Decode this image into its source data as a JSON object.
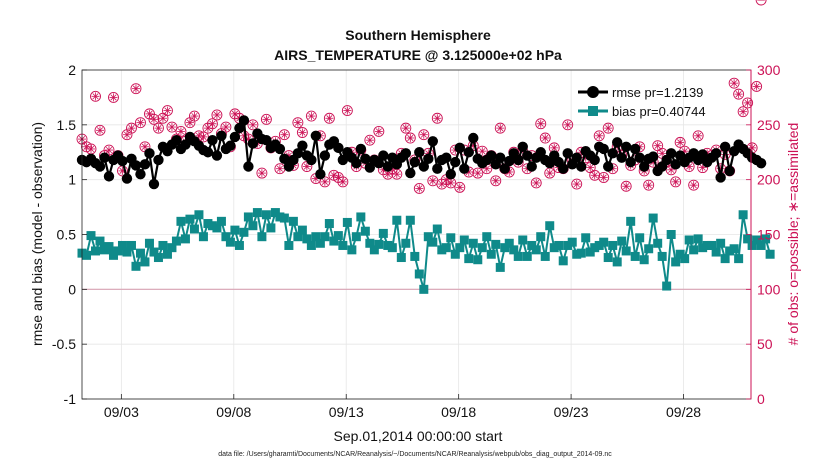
{
  "chart_data": {
    "type": "line",
    "title": "Southern Hemisphere",
    "subtitle": "AIRS_TEMPERATURE @ 3.125000e+02 hPa",
    "xlabel": "Sep.01,2014 00:00:00 start",
    "ylabel": "rmse and bias (model - observation)",
    "y2label": "# of obs: o=possible; ∗=assimilated",
    "xticks": [
      {
        "day": 3,
        "label": "09/03"
      },
      {
        "day": 8,
        "label": "09/08"
      },
      {
        "day": 13,
        "label": "09/13"
      },
      {
        "day": 18,
        "label": "09/18"
      },
      {
        "day": 23,
        "label": "09/23"
      },
      {
        "day": 28,
        "label": "09/28"
      }
    ],
    "xlim": [
      1.25,
      31.0
    ],
    "ylim": [
      -1,
      2
    ],
    "yticks": [
      "-1",
      "-0.5",
      "0",
      "0.5",
      "1",
      "1.5",
      "2"
    ],
    "y2lim": [
      0,
      300
    ],
    "y2ticks": [
      "0",
      "50",
      "100",
      "150",
      "200",
      "250",
      "300"
    ],
    "grid": true,
    "legend_position": "top-right",
    "colors": {
      "rmse": "#000000",
      "bias": "#0f8a8a",
      "obs": "#cc1155",
      "zero_line": "#d9a3b4"
    },
    "series": [
      {
        "name": "rmse pr=1.2139",
        "axis": "left",
        "values": [
          1.18,
          1.16,
          1.19,
          1.15,
          1.12,
          1.2,
          1.03,
          1.18,
          1.22,
          1.17,
          1.01,
          1.19,
          1.13,
          1.05,
          1.14,
          1.24,
          0.96,
          1.18,
          1.3,
          1.26,
          1.32,
          1.36,
          1.28,
          1.32,
          1.39,
          1.35,
          1.31,
          1.27,
          1.25,
          1.36,
          1.22,
          1.4,
          1.28,
          1.31,
          1.39,
          1.47,
          1.54,
          1.12,
          1.33,
          1.42,
          1.37,
          1.36,
          1.29,
          1.32,
          1.28,
          1.19,
          1.12,
          1.18,
          1.24,
          1.31,
          1.22,
          1.18,
          1.4,
          1.05,
          1.22,
          1.32,
          1.35,
          1.29,
          1.18,
          1.25,
          1.2,
          1.15,
          1.28,
          1.19,
          1.11,
          1.18,
          1.15,
          1.22,
          1.12,
          1.2,
          1.14,
          1.2,
          1.24,
          1.06,
          1.16,
          1.25,
          1.12,
          1.19,
          1.35,
          1.1,
          1.18,
          1.2,
          1.05,
          1.16,
          1.29,
          1.1,
          1.25,
          1.38,
          1.19,
          1.15,
          1.18,
          1.22,
          1.14,
          1.2,
          1.1,
          1.17,
          1.24,
          1.18,
          1.3,
          1.22,
          1.12,
          1.2,
          1.25,
          1.18,
          1.15,
          1.22,
          1.16,
          1.1,
          1.24,
          1.14,
          1.2,
          1.12,
          1.26,
          1.22,
          1.18,
          1.3,
          1.28,
          1.12,
          1.24,
          1.34,
          1.2,
          1.3,
          1.16,
          1.28,
          1.2,
          1.12,
          1.19,
          1.21,
          1.08,
          1.12,
          1.18,
          1.24,
          1.14,
          1.22,
          1.16,
          1.2,
          1.24,
          1.18,
          1.23,
          1.16,
          1.2,
          1.24,
          1.02,
          1.3,
          1.08,
          1.26,
          1.32,
          1.28,
          1.24,
          1.2,
          1.18,
          1.15
        ]
      },
      {
        "name": "bias pr=0.40744",
        "axis": "left",
        "values": [
          0.33,
          0.31,
          0.49,
          0.35,
          0.44,
          0.36,
          0.39,
          0.31,
          0.35,
          0.4,
          0.34,
          0.4,
          0.21,
          0.33,
          0.25,
          0.42,
          0.34,
          0.29,
          0.4,
          0.32,
          0.38,
          0.44,
          0.62,
          0.46,
          0.64,
          0.55,
          0.68,
          0.48,
          0.6,
          0.58,
          0.56,
          0.62,
          0.48,
          0.43,
          0.54,
          0.4,
          0.52,
          0.66,
          0.58,
          0.7,
          0.48,
          0.68,
          0.56,
          0.7,
          0.66,
          0.65,
          0.4,
          0.62,
          0.48,
          0.54,
          0.46,
          0.4,
          0.48,
          0.42,
          0.48,
          0.6,
          0.44,
          0.49,
          0.4,
          0.61,
          0.36,
          0.48,
          0.66,
          0.53,
          0.42,
          0.36,
          0.41,
          0.51,
          0.4,
          0.38,
          0.63,
          0.29,
          0.42,
          0.63,
          0.3,
          0.14,
          0.0,
          0.48,
          0.43,
          0.55,
          0.36,
          0.38,
          0.47,
          0.32,
          0.38,
          0.45,
          0.28,
          0.42,
          0.27,
          0.38,
          0.48,
          0.32,
          0.41,
          0.2,
          0.38,
          0.42,
          0.36,
          0.3,
          0.45,
          0.3,
          0.4,
          0.36,
          0.48,
          0.3,
          0.58,
          0.38,
          0.4,
          0.26,
          0.4,
          0.43,
          0.32,
          0.33,
          0.47,
          0.34,
          0.38,
          0.4,
          0.43,
          0.29,
          0.4,
          0.25,
          0.44,
          0.35,
          0.62,
          0.3,
          0.47,
          0.27,
          0.37,
          0.65,
          0.42,
          0.3,
          0.03,
          0.5,
          0.25,
          0.32,
          0.28,
          0.45,
          0.36,
          0.46,
          0.38,
          0.4,
          0.4,
          0.34,
          0.42,
          0.28,
          0.35,
          0.37,
          0.28,
          0.68,
          0.46,
          0.4,
          0.45,
          0.4,
          0.46,
          0.32
        ]
      },
      {
        "name": "# of obs possible",
        "axis": "right",
        "values": [
          237,
          230,
          228,
          276,
          245,
          222,
          227,
          275,
          222,
          208,
          241,
          247,
          283,
          252,
          230,
          260,
          255,
          247,
          256,
          263,
          248,
          237,
          244,
          235,
          252,
          258,
          240,
          239,
          247,
          251,
          259,
          242,
          248,
          230,
          260,
          256,
          240,
          237,
          250,
          233,
          206,
          255,
          229,
          235,
          210,
          241,
          222,
          213,
          252,
          243,
          212,
          258,
          201,
          240,
          198,
          256,
          204,
          202,
          198,
          263,
          225,
          212,
          227,
          215,
          236,
          218,
          244,
          209,
          205,
          210,
          205,
          224,
          247,
          238,
          218,
          192,
          241,
          224,
          199,
          256,
          196,
          200,
          197,
          227,
          193,
          227,
          207,
          231,
          206,
          226,
          210,
          222,
          199,
          247,
          210,
          207,
          225,
          216,
          226,
          210,
          222,
          197,
          251,
          238,
          206,
          229,
          211,
          210,
          250,
          218,
          196,
          225,
          220,
          211,
          204,
          240,
          202,
          247,
          210,
          230,
          222,
          194,
          213,
          218,
          230,
          208,
          195,
          216,
          231,
          224,
          216,
          209,
          198,
          234,
          226,
          212,
          195,
          240,
          211,
          224,
          222,
          227,
          210,
          223,
          208,
          288,
          278,
          262,
          270,
          229,
          285
        ]
      },
      {
        "name": "# of obs assimilated",
        "axis": "right",
        "values": [
          237,
          230,
          228,
          276,
          245,
          222,
          227,
          275,
          222,
          208,
          241,
          247,
          283,
          252,
          230,
          260,
          255,
          247,
          256,
          263,
          248,
          237,
          244,
          235,
          252,
          258,
          240,
          239,
          247,
          251,
          259,
          242,
          248,
          230,
          260,
          256,
          240,
          237,
          250,
          233,
          206,
          255,
          229,
          235,
          210,
          241,
          222,
          213,
          252,
          243,
          212,
          258,
          201,
          240,
          198,
          256,
          204,
          202,
          198,
          263,
          225,
          212,
          227,
          215,
          236,
          218,
          244,
          209,
          205,
          210,
          205,
          224,
          247,
          238,
          218,
          192,
          241,
          224,
          199,
          256,
          196,
          200,
          197,
          227,
          193,
          227,
          207,
          231,
          206,
          226,
          210,
          222,
          199,
          247,
          210,
          207,
          225,
          216,
          226,
          210,
          222,
          197,
          251,
          238,
          206,
          229,
          211,
          210,
          250,
          218,
          196,
          225,
          220,
          211,
          204,
          240,
          202,
          247,
          210,
          230,
          222,
          194,
          213,
          218,
          230,
          208,
          195,
          216,
          231,
          224,
          216,
          209,
          198,
          234,
          226,
          212,
          195,
          240,
          211,
          224,
          222,
          227,
          210,
          223,
          208,
          288,
          278,
          262,
          270,
          229,
          285
        ]
      }
    ]
  },
  "footnote": "data file: /Users/gharamti/Documents/NCAR/Reanalysis/~/Documents/NCAR/Reanalysis/webpub/obs_diag_output_2014-09.nc"
}
